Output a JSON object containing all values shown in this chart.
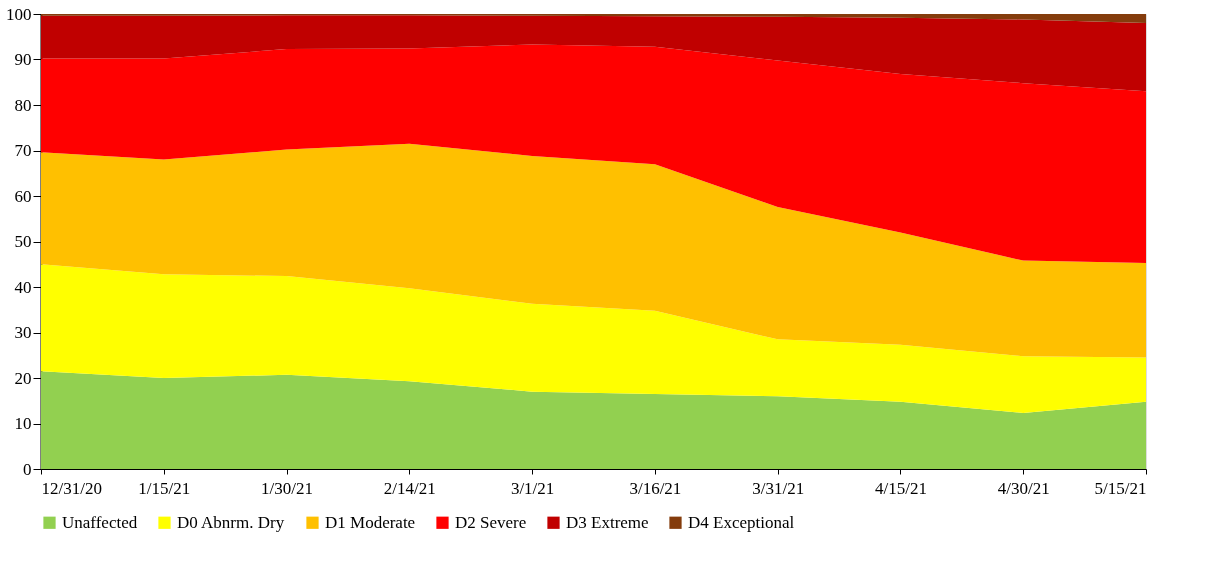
{
  "chart_data": {
    "type": "area",
    "stacked": true,
    "categories": [
      "12/31/20",
      "1/15/21",
      "1/30/21",
      "2/14/21",
      "3/1/21",
      "3/16/21",
      "3/31/21",
      "4/15/21",
      "4/30/21",
      "5/15/21"
    ],
    "series": [
      {
        "name": "Unaffected",
        "color": "#92d050",
        "values": [
          21.5,
          20,
          20.7,
          19.3,
          17,
          16.5,
          16,
          14.8,
          12.3,
          14.8
        ]
      },
      {
        "name": "D0 Abnrm. Dry",
        "color": "#ffff00",
        "values": [
          23.5,
          22.8,
          21.7,
          20.4,
          19.3,
          18.3,
          12.5,
          12.5,
          12.5,
          9.7
        ]
      },
      {
        "name": "D1 Moderate",
        "color": "#ffc000",
        "values": [
          24.6,
          25.2,
          27.8,
          31.8,
          32.5,
          32.2,
          29.1,
          24.7,
          21,
          20.8
        ]
      },
      {
        "name": "D2 Severe",
        "color": "#ff0000",
        "values": [
          20.6,
          22.2,
          22.1,
          20.9,
          24.5,
          25.8,
          32.2,
          34.8,
          39,
          37.7
        ]
      },
      {
        "name": "D3 Extreme",
        "color": "#c00000",
        "values": [
          9.4,
          9.4,
          7.4,
          7.3,
          6.3,
          6.7,
          9.6,
          12.4,
          14,
          15
        ]
      },
      {
        "name": "D4 Exceptional",
        "color": "#843c0c",
        "values": [
          0.4,
          0.4,
          0.3,
          0.3,
          0.4,
          0.5,
          0.6,
          0.8,
          1.2,
          2
        ]
      }
    ],
    "ylim": [
      0,
      100
    ],
    "yticks": [
      0,
      10,
      20,
      30,
      40,
      50,
      60,
      70,
      80,
      90,
      100
    ],
    "grid": false,
    "legend": "bottom"
  }
}
